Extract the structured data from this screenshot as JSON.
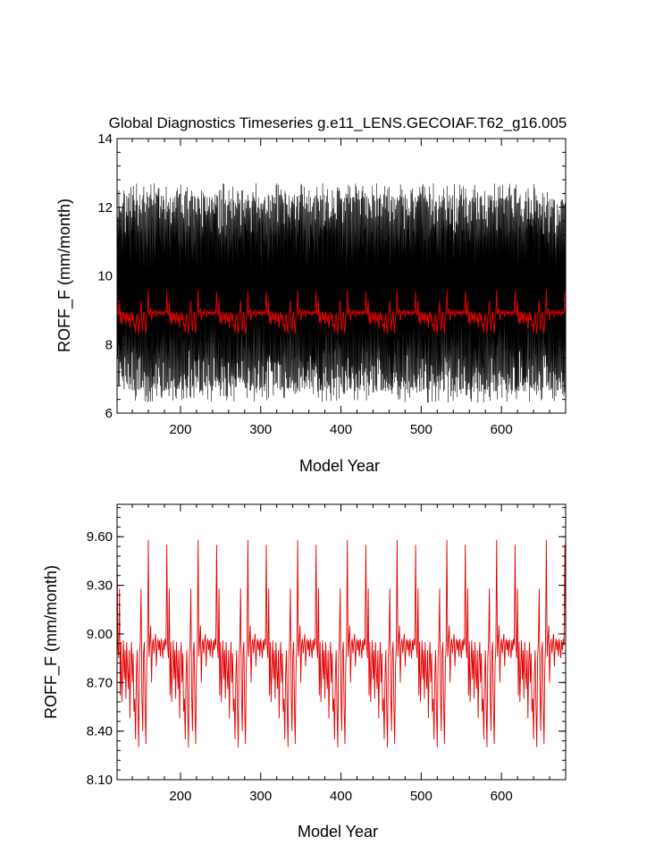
{
  "figure": {
    "title": "Global Diagnostics Timeseries g.e11_LENS.GECOIAF.T62_g16.005"
  },
  "chart_data": [
    {
      "type": "line",
      "xlabel": "Model Year",
      "ylabel": "ROFF_F (mm/month)",
      "xlim": [
        121,
        680
      ],
      "ylim": [
        6,
        14
      ],
      "xticks": [
        200,
        300,
        400,
        500,
        600
      ],
      "xtick_labels": [
        "200",
        "300",
        "400",
        "500",
        "600"
      ],
      "yticks": [
        6,
        8,
        10,
        12,
        14
      ],
      "ytick_labels": [
        "6",
        "8",
        "10",
        "12",
        "14"
      ],
      "grid": false,
      "legend": "none",
      "series": [
        {
          "color": "#000000",
          "description_of_values": "monthly mean, oscillating roughly between 6.5 and 12.5",
          "approx_range": [
            6.2,
            13.1
          ]
        },
        {
          "color": "#e00000",
          "description_of_values": "annual mean, near 8.9",
          "approx_range": [
            8.3,
            9.6
          ]
        }
      ]
    },
    {
      "type": "line",
      "xlabel": "Model Year",
      "ylabel": "ROFF_F (mm/month)",
      "xlim": [
        121,
        680
      ],
      "ylim": [
        8.1,
        9.8
      ],
      "xticks": [
        200,
        300,
        400,
        500,
        600
      ],
      "xtick_labels": [
        "200",
        "300",
        "400",
        "500",
        "600"
      ],
      "yticks": [
        8.1,
        8.4,
        8.7,
        9.0,
        9.3,
        9.6
      ],
      "ytick_labels": [
        "8.10",
        "8.40",
        "8.70",
        "9.00",
        "9.30",
        "9.60"
      ],
      "grid": false,
      "legend": "none",
      "series": [
        {
          "color": "#e00000",
          "description_of_values": "annual mean, repeating ~62-year forcing cycle",
          "approx_range": [
            8.28,
            9.62
          ],
          "cycle_length_years": 62,
          "cycle_values": [
            9.55,
            8.92,
            8.85,
            9.28,
            8.62,
            8.95,
            8.58,
            8.8,
            8.96,
            8.72,
            8.9,
            8.6,
            8.95,
            8.78,
            8.66,
            8.9,
            8.48,
            8.82,
            8.95,
            8.7,
            8.88,
            8.52,
            8.6,
            8.35,
            8.74,
            8.9,
            8.55,
            8.3,
            8.85,
            8.96,
            9.28,
            8.62,
            8.4,
            8.88,
            8.95,
            8.55,
            8.32,
            8.8,
            8.92,
            9.58,
            8.86,
            8.97,
            9.05,
            8.7,
            8.93,
            8.97,
            8.88,
            8.95,
            9.0,
            8.8,
            8.93,
            8.97,
            8.9,
            8.96,
            8.86,
            8.97,
            8.92,
            8.85,
            8.96,
            8.9,
            8.97,
            8.93
          ]
        }
      ]
    }
  ]
}
